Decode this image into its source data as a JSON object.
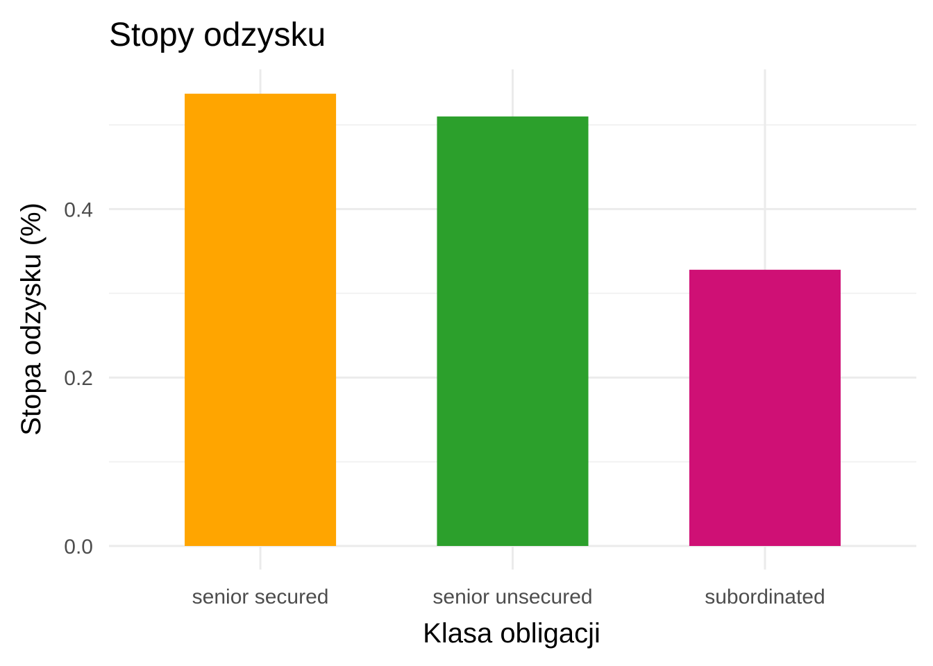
{
  "chart_data": {
    "type": "bar",
    "title": "Stopy odzysku",
    "xlabel": "Klasa obligacji",
    "ylabel": "Stopa odzysku (%)",
    "categories": [
      "senior secured",
      "senior unsecured",
      "subordinated"
    ],
    "values": [
      0.537,
      0.51,
      0.328
    ],
    "colors": [
      "#FFA500",
      "#2CA02C",
      "#CF1075"
    ],
    "ylim": [
      0,
      0.56
    ],
    "yticks": [
      0.0,
      0.2,
      0.4
    ],
    "ytick_labels": [
      "0.0",
      "0.2",
      "0.4"
    ],
    "grid": true,
    "legend": "none"
  }
}
